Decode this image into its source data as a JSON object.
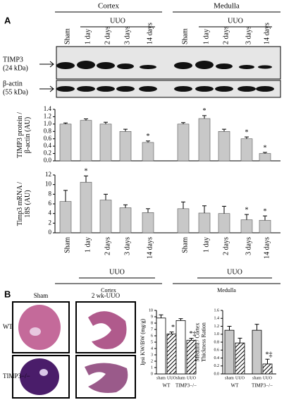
{
  "panel_labels": [
    "A",
    "B"
  ],
  "blot": {
    "regions": [
      "Cortex",
      "Medulla"
    ],
    "treatment": "UUO",
    "lanes": [
      "Sham",
      "1 day",
      "2 days",
      "3 days",
      "14 days",
      "Sham",
      "1 day",
      "2 days",
      "3 days",
      "14 days"
    ],
    "rows": [
      [
        "TIMP3",
        "(24 kDa)"
      ],
      [
        "β-actin",
        "(55 kDa)"
      ]
    ]
  },
  "chart_data": [
    {
      "type": "bar",
      "y_label": [
        "TIMP3 protein /",
        "β-actin (AU)"
      ],
      "color": "#c8c8c8",
      "values": [
        1.0,
        1.1,
        1.0,
        0.8,
        0.5,
        1.0,
        1.15,
        0.8,
        0.6,
        0.2
      ],
      "errors": [
        0.03,
        0.04,
        0.05,
        0.06,
        0.04,
        0.04,
        0.08,
        0.06,
        0.05,
        0.03
      ],
      "markers": [
        null,
        null,
        null,
        null,
        "*",
        null,
        "*",
        null,
        "*",
        "*"
      ],
      "ylim": [
        0,
        1.4
      ],
      "yticks": [
        {
          "value": 0,
          "label": "0.0"
        },
        0.2,
        0.4,
        0.6,
        0.8,
        {
          "value": 1,
          "label": "1.0"
        },
        1.2,
        1.4
      ]
    },
    {
      "type": "bar",
      "y_label": [
        "Timp3 mRNA /",
        "18S (AU)"
      ],
      "color": "#c8c8c8",
      "categories": [
        "Sham",
        "1 day",
        "2 days",
        "3 days",
        "14 days",
        "Sham",
        "1 day",
        "2 days",
        "3 days",
        "14 days"
      ],
      "treatment": "UUO",
      "groups": [
        "Cortex",
        "Medulla"
      ],
      "values": [
        6.5,
        10.5,
        6.8,
        5.2,
        4.2,
        5.0,
        4.1,
        4.0,
        2.7,
        2.6
      ],
      "errors": [
        2.3,
        1.3,
        1.2,
        0.6,
        0.8,
        1.4,
        1.5,
        1.5,
        1.1,
        0.9
      ],
      "markers": [
        null,
        "*",
        null,
        null,
        null,
        null,
        null,
        null,
        "*",
        "*"
      ],
      "ylim": [
        0,
        12
      ],
      "yticks": [
        0,
        2,
        4,
        6,
        8,
        10,
        12
      ]
    },
    {
      "type": "grouped_bar",
      "y_label": [
        "Ipsi KW/BW (mg/g)"
      ],
      "categories": [
        "WT",
        "TIMP3−/−"
      ],
      "series": [
        {
          "name": "sham",
          "color": "#ffffff",
          "values": [
            8.8,
            8.4
          ],
          "errors": [
            0.5,
            0.3
          ]
        },
        {
          "name": "UUO",
          "color": "#ffffff",
          "hatch": true,
          "values": [
            6.3,
            5.3
          ],
          "errors": [
            0.3,
            0.3
          ],
          "markers": [
            "*",
            "*‡"
          ]
        }
      ],
      "ylim": [
        0,
        10
      ],
      "yticks": [
        0,
        1,
        2,
        3,
        4,
        5,
        6,
        7,
        8,
        9,
        10
      ]
    },
    {
      "type": "grouped_bar",
      "y_label": [
        "Medulla / Cortex",
        "Thickness Ration"
      ],
      "categories": [
        "WT",
        "TIMP3−/−"
      ],
      "series": [
        {
          "name": "sham",
          "color": "#c8c8c8",
          "values": [
            1.1,
            1.1
          ],
          "errors": [
            0.1,
            0.15
          ]
        },
        {
          "name": "UUO",
          "color": "#ffffff",
          "hatch": true,
          "values": [
            0.78,
            0.25
          ],
          "errors": [
            0.12,
            0.12
          ],
          "markers": [
            null,
            "*‡"
          ]
        }
      ],
      "ylim": [
        0,
        1.6
      ],
      "yticks": [
        {
          "value": 0,
          "label": "0.0"
        },
        0.2,
        0.4,
        0.6,
        0.8,
        {
          "value": 1,
          "label": "1.0"
        },
        1.2,
        1.4,
        1.6
      ]
    }
  ],
  "histology": {
    "columns": [
      "Sham",
      "2 wk-UUO"
    ],
    "rows": [
      "WT",
      "TIMP3−/−"
    ]
  }
}
